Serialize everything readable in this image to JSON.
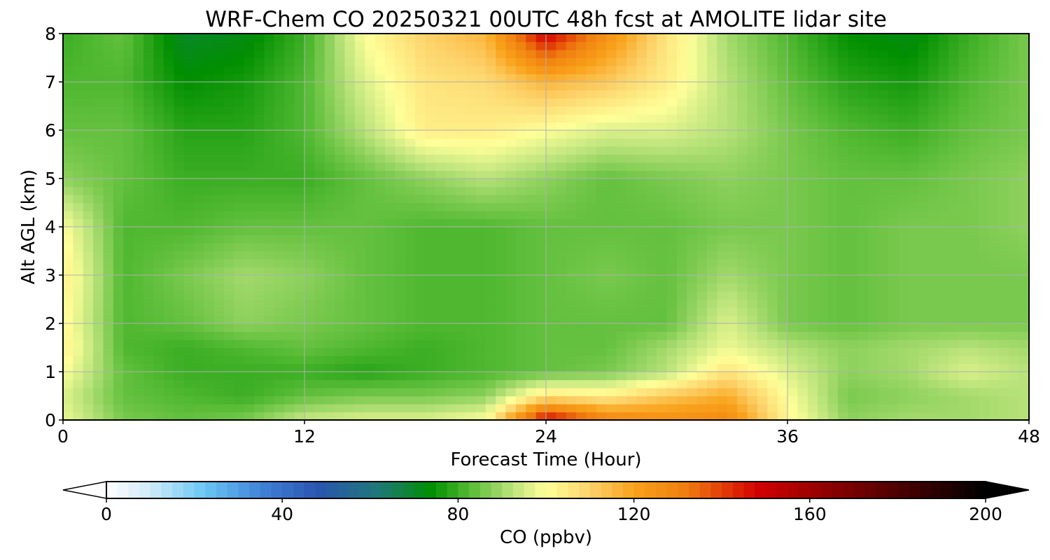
{
  "chart_data": {
    "type": "heatmap",
    "title": "WRF-Chem CO  20250321 00UTC 48h fcst at AMOLITE lidar site",
    "xlabel": "Forecast Time (Hour)",
    "ylabel": "Alt AGL (km)",
    "xlim": [
      0,
      48
    ],
    "ylim": [
      0,
      8
    ],
    "x_ticks": [
      "0",
      "12",
      "24",
      "36",
      "48"
    ],
    "y_ticks": [
      "0",
      "1",
      "2",
      "3",
      "4",
      "5",
      "6",
      "7",
      "8"
    ],
    "grid": true,
    "x": [
      0,
      3,
      6,
      9,
      12,
      15,
      18,
      21,
      24,
      27,
      30,
      33,
      36,
      39,
      42,
      45,
      48
    ],
    "y": [
      0,
      0.5,
      1,
      1.5,
      2,
      3,
      4,
      5,
      6,
      7,
      8
    ],
    "z": [
      [
        98,
        86,
        84,
        86,
        94,
        96,
        96,
        100,
        150,
        130,
        126,
        128,
        102,
        88,
        90,
        90,
        92
      ],
      [
        96,
        84,
        82,
        80,
        84,
        86,
        86,
        88,
        106,
        104,
        112,
        118,
        100,
        86,
        88,
        90,
        92
      ],
      [
        100,
        84,
        80,
        80,
        80,
        78,
        80,
        82,
        84,
        86,
        92,
        106,
        96,
        88,
        90,
        96,
        92
      ],
      [
        104,
        82,
        80,
        82,
        84,
        82,
        80,
        82,
        84,
        84,
        90,
        98,
        92,
        88,
        90,
        92,
        90
      ],
      [
        102,
        82,
        84,
        88,
        86,
        84,
        82,
        82,
        84,
        84,
        84,
        96,
        86,
        84,
        86,
        86,
        86
      ],
      [
        104,
        82,
        86,
        90,
        88,
        84,
        82,
        82,
        84,
        86,
        84,
        90,
        86,
        84,
        86,
        86,
        86
      ],
      [
        100,
        82,
        82,
        84,
        84,
        84,
        82,
        82,
        84,
        84,
        84,
        86,
        86,
        84,
        86,
        86,
        88
      ],
      [
        88,
        84,
        80,
        80,
        80,
        84,
        88,
        92,
        88,
        84,
        86,
        88,
        86,
        84,
        84,
        86,
        88
      ],
      [
        84,
        84,
        78,
        78,
        82,
        92,
        104,
        104,
        100,
        96,
        96,
        92,
        86,
        82,
        80,
        84,
        86
      ],
      [
        82,
        82,
        74,
        76,
        82,
        96,
        106,
        108,
        116,
        112,
        104,
        92,
        84,
        78,
        76,
        82,
        86
      ],
      [
        80,
        84,
        70,
        72,
        80,
        100,
        110,
        116,
        150,
        126,
        106,
        90,
        82,
        74,
        72,
        80,
        86
      ]
    ],
    "colorbar": {
      "label": "CO  (ppbv)",
      "min": 0,
      "max": 200,
      "ticks": [
        "0",
        "40",
        "80",
        "120",
        "160",
        "200"
      ],
      "extend": "both",
      "stops": [
        {
          "v": 0,
          "c": "#ffffff"
        },
        {
          "v": 10,
          "c": "#cfe9f9"
        },
        {
          "v": 22,
          "c": "#6cc8f5"
        },
        {
          "v": 36,
          "c": "#3f7fd6"
        },
        {
          "v": 48,
          "c": "#2a55b0"
        },
        {
          "v": 62,
          "c": "#1f7878"
        },
        {
          "v": 74,
          "c": "#008f00"
        },
        {
          "v": 82,
          "c": "#4fb830"
        },
        {
          "v": 92,
          "c": "#b8e27a"
        },
        {
          "v": 100,
          "c": "#ffff99"
        },
        {
          "v": 110,
          "c": "#fdd26a"
        },
        {
          "v": 120,
          "c": "#f9a21b"
        },
        {
          "v": 132,
          "c": "#f07d0f"
        },
        {
          "v": 148,
          "c": "#d40000"
        },
        {
          "v": 165,
          "c": "#8a0000"
        },
        {
          "v": 185,
          "c": "#3a0000"
        },
        {
          "v": 200,
          "c": "#000000"
        }
      ]
    }
  }
}
